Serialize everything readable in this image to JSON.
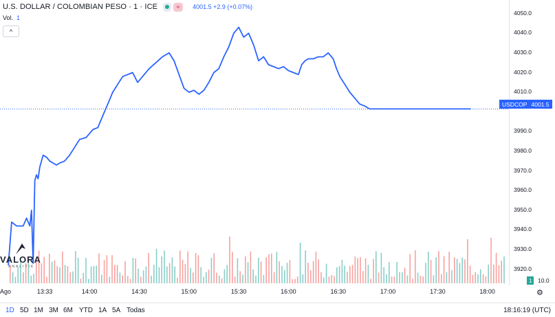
{
  "header": {
    "title": "U.S. DOLLAR / COLOMBIAN PESO · 1 · ICE",
    "wave_symbol": "≈",
    "quote": "4001.5 +2.9 (+0.07%)",
    "volume_label": "Vol.",
    "volume_value": "1",
    "collapse_symbol": "^"
  },
  "price_label": {
    "symbol": "USDCOP",
    "value": "4001.5"
  },
  "volume_axis": {
    "badge": "1",
    "label": "10.0"
  },
  "logo": {
    "wordmark": "VALORA",
    "subtitle": "ANALITIK"
  },
  "range_buttons": [
    "1D",
    "5D",
    "1M",
    "3M",
    "6M",
    "YTD",
    "1A",
    "5A",
    "Todas"
  ],
  "active_range": "1D",
  "clock": "18:16:19 (UTC)",
  "settings_icon": "⚙",
  "chart_data": {
    "type": "line",
    "series": [
      {
        "name": "USDCOP",
        "color": "#2962ff"
      }
    ],
    "price_ticks": [
      4050.0,
      4040.0,
      4030.0,
      4020.0,
      4010.0,
      3990.0,
      3980.0,
      3970.0,
      3960.0,
      3950.0,
      3940.0,
      3930.0,
      3920.0
    ],
    "price_tick_labels": [
      "4050.0",
      "4040.0",
      "4030.0",
      "4020.0",
      "4010.0",
      "3990.0",
      "3980.0",
      "3970.0",
      "3960.0",
      "3950.0",
      "3940.0",
      "3930.0",
      "3920.0"
    ],
    "ylim": [
      3916,
      4052
    ],
    "last_price": 4001.5,
    "x_labels": [
      "Ago",
      "13:33",
      "14:00",
      "14:30",
      "15:00",
      "15:30",
      "16:00",
      "16:30",
      "17:00",
      "17:30",
      "18:00"
    ],
    "x_label_minutes": [
      786,
      813,
      840,
      870,
      900,
      930,
      960,
      990,
      1020,
      1050,
      1080
    ],
    "x_range_minutes": [
      786,
      1093
    ],
    "line": {
      "t": [
        791,
        793,
        796,
        800,
        802,
        804,
        805,
        806,
        807,
        808,
        809,
        810,
        812,
        814,
        816,
        818,
        820,
        822,
        825,
        828,
        831,
        834,
        838,
        842,
        845,
        848,
        851,
        854,
        857,
        860,
        863,
        866,
        869,
        872,
        876,
        880,
        884,
        888,
        891,
        894,
        897,
        900,
        903,
        906,
        909,
        912,
        915,
        918,
        921,
        924,
        927,
        930,
        933,
        936,
        939,
        942,
        945,
        948,
        951,
        954,
        957,
        960,
        963,
        966,
        968,
        970,
        972,
        975,
        978,
        981,
        984,
        987,
        989,
        991,
        994,
        997,
        1000,
        1003,
        1006,
        1009,
        1012,
        1015,
        1018,
        1021,
        1024,
        1026,
        1029,
        1032,
        1035,
        1038,
        1041,
        1044,
        1047,
        1050,
        1053,
        1056,
        1059,
        1062,
        1064,
        1066,
        1068,
        1069,
        1070
      ],
      "v": [
        3922,
        3944,
        3942,
        3942,
        3946,
        3942,
        3950,
        3923,
        3965,
        3968,
        3966,
        3972,
        3978,
        3977,
        3975,
        3974,
        3973,
        3974,
        3975,
        3978,
        3982,
        3986,
        3987,
        3991,
        3992,
        3998,
        4004,
        4010,
        4014,
        4018,
        4019,
        4020,
        4015,
        4018,
        4022,
        4025,
        4028,
        4030,
        4026,
        4019,
        4012,
        4010,
        4011,
        4009,
        4011,
        4015,
        4020,
        4022,
        4028,
        4033,
        4040,
        4043,
        4038,
        4040,
        4034,
        4026,
        4028,
        4024,
        4023,
        4022,
        4023,
        4021,
        4020,
        4019,
        4024,
        4026,
        4027,
        4027,
        4028,
        4028,
        4030,
        4027,
        4022,
        4018,
        4014,
        4010,
        4007,
        4004,
        4003,
        4001.5,
        4001.5,
        4001.5,
        4001.5,
        4001.5,
        4001.5,
        4001.5,
        4001.5,
        4001.5,
        4001.5,
        4001.5,
        4001.5,
        4001.5,
        4001.5,
        4001.5,
        4001.5,
        4001.5,
        4001.5,
        4001.5,
        4001.5,
        4001.5,
        4001.5,
        4001.5,
        4001.5
      ]
    },
    "volume_bars": {
      "count": 190,
      "up_color": "#26a69a",
      "down_color": "#ef5350"
    }
  }
}
